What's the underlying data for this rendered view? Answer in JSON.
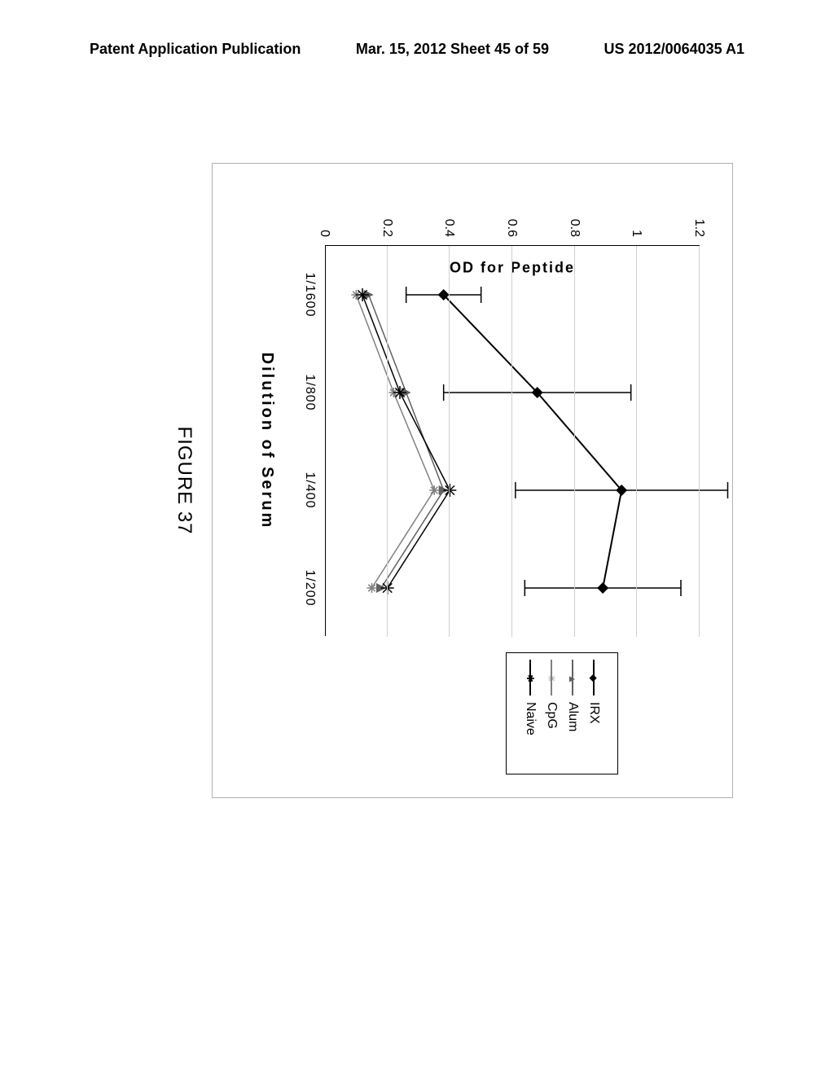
{
  "header": {
    "left": "Patent Application Publication",
    "mid": "Mar. 15, 2012  Sheet 45 of 59",
    "right": "US 2012/0064035 A1"
  },
  "figure_caption": "FIGURE 37",
  "chart": {
    "type": "line",
    "y_axis_title": "OD for Peptide",
    "x_axis_title": "Dilution of Serum",
    "x_categories": [
      "1/1600",
      "1/800",
      "1/400",
      "1/200"
    ],
    "ylim": [
      0,
      1.2
    ],
    "y_ticks": [
      0,
      0.2,
      0.4,
      0.6,
      0.8,
      1,
      1.2
    ],
    "background_color": "#ffffff",
    "grid_color": "#d0d0d0",
    "axis_color": "#000000",
    "label_fontsize": 16,
    "title_fontsize": 20,
    "series": [
      {
        "name": "IRX",
        "marker": "diamond",
        "color": "#000000",
        "line_width": 2,
        "values": [
          0.38,
          0.68,
          0.95,
          0.89
        ],
        "error": [
          0.12,
          0.3,
          0.34,
          0.25
        ]
      },
      {
        "name": "Alum",
        "marker": "triangle",
        "color": "#606060",
        "line_width": 1.5,
        "values": [
          0.14,
          0.26,
          0.38,
          0.18
        ],
        "error": [
          0,
          0,
          0,
          0
        ]
      },
      {
        "name": "CpG",
        "marker": "asterisk",
        "color": "#808080",
        "line_width": 1.5,
        "values": [
          0.1,
          0.22,
          0.35,
          0.15
        ],
        "error": [
          0,
          0,
          0,
          0
        ]
      },
      {
        "name": "Naive",
        "marker": "big-asterisk",
        "color": "#000000",
        "line_width": 1.5,
        "values": [
          0.12,
          0.24,
          0.4,
          0.2
        ],
        "error": [
          0,
          0,
          0,
          0
        ]
      }
    ],
    "legend": {
      "position": "right",
      "items": [
        "IRX",
        "Alum",
        "CpG",
        "Naive"
      ]
    }
  }
}
